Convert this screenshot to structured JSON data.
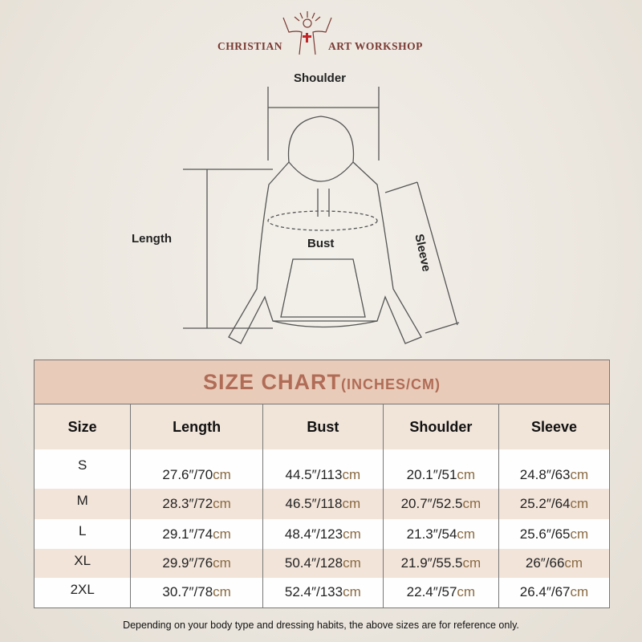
{
  "brand": {
    "left": "CHRISTIAN",
    "right": "ART WORKSHOP",
    "icon": "jesus-cross-logo",
    "color": "#7a3a34"
  },
  "diagram": {
    "shoulder": "Shoulder",
    "length": "Length",
    "bust": "Bust",
    "sleeve": "Sleeve"
  },
  "table": {
    "title": "SIZE CHART",
    "title_unit": "(INCHES/CM)",
    "headers": [
      "Size",
      "Length",
      "Bust",
      "Shoulder",
      "Sleeve"
    ],
    "rows": [
      {
        "size": "S",
        "values": [
          [
            "27.6″/70",
            "cm"
          ],
          [
            "44.5″/113",
            "cm"
          ],
          [
            "20.1″/51",
            "cm"
          ],
          [
            "24.8″/63",
            "cm"
          ]
        ]
      },
      {
        "size": "M",
        "values": [
          [
            "28.3″/72",
            "cm"
          ],
          [
            "46.5″/118",
            "cm"
          ],
          [
            "20.7″/52.5",
            "cm"
          ],
          [
            "25.2″/64",
            "cm"
          ]
        ]
      },
      {
        "size": "L",
        "values": [
          [
            "29.1″/74",
            "cm"
          ],
          [
            "48.4″/123",
            "cm"
          ],
          [
            "21.3″/54",
            "cm"
          ],
          [
            "25.6″/65",
            "cm"
          ]
        ]
      },
      {
        "size": "XL",
        "values": [
          [
            "29.9″/76",
            "cm"
          ],
          [
            "50.4″/128",
            "cm"
          ],
          [
            "21.9″/55.5",
            "cm"
          ],
          [
            "26″/66",
            "cm"
          ]
        ]
      },
      {
        "size": "2XL",
        "values": [
          [
            "30.7″/78",
            "cm"
          ],
          [
            "52.4″/133",
            "cm"
          ],
          [
            "22.4″/57",
            "cm"
          ],
          [
            "26.4″/67",
            "cm"
          ]
        ]
      }
    ],
    "colors": {
      "title_bg": "#e9cbb9",
      "title_text": "#b06c56",
      "header_bg": "#f1e4d9",
      "cm_text": "#8a6a42"
    }
  },
  "footnote": "Depending on your body type and dressing habits, the above sizes are for reference only."
}
